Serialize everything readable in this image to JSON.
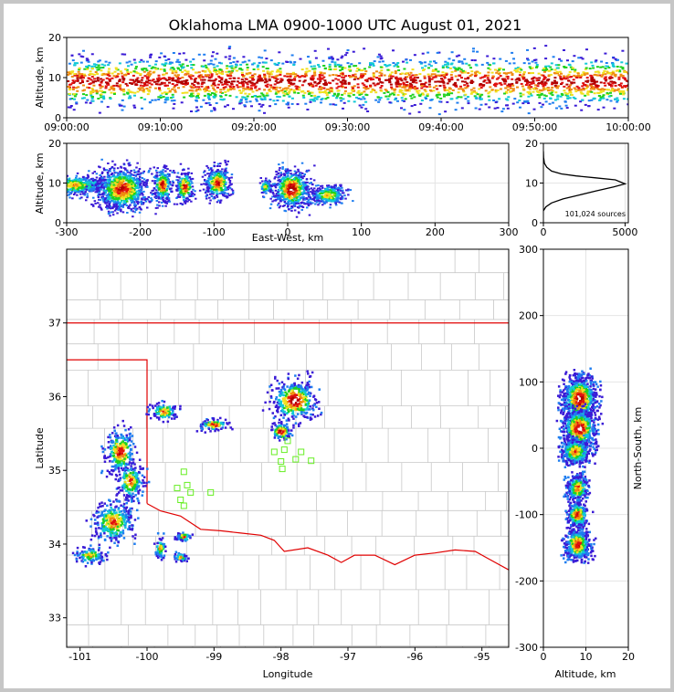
{
  "chart_data": [
    {
      "type": "heatmap",
      "panel": "altitude-time",
      "title": "Oklahoma LMA 0900-1000 UTC August 01, 2021",
      "xlabel": "",
      "ylabel": "Altitude, km",
      "xlim": [
        "09:00:00",
        "10:00:00"
      ],
      "ylim": [
        0,
        20
      ],
      "x_ticks": [
        "09:00:00",
        "09:10:00",
        "09:20:00",
        "09:30:00",
        "09:40:00",
        "09:50:00",
        "10:00:00"
      ],
      "y_ticks": [
        "0",
        "10",
        "20"
      ],
      "band_center_km": 9,
      "band_halfwidth_km": 3.5
    },
    {
      "type": "heatmap",
      "panel": "altitude-east-west",
      "xlabel": "East-West, km",
      "ylabel": "Altitude, km",
      "xlim": [
        -300,
        300
      ],
      "ylim": [
        0,
        20
      ],
      "x_ticks": [
        "-300",
        "-200",
        "-100",
        "0",
        "100",
        "200",
        "300"
      ],
      "y_ticks": [
        "0",
        "10",
        "20"
      ],
      "clusters": [
        {
          "x": -290,
          "w": 45,
          "z": 9.5,
          "h": 2.5,
          "level": 2
        },
        {
          "x": -225,
          "w": 35,
          "z": 8.5,
          "h": 5.5,
          "level": 4
        },
        {
          "x": -170,
          "w": 12,
          "z": 9.5,
          "h": 4.5,
          "level": 4
        },
        {
          "x": -140,
          "w": 12,
          "z": 9,
          "h": 4,
          "level": 4
        },
        {
          "x": -95,
          "w": 18,
          "z": 10,
          "h": 4,
          "level": 4
        },
        {
          "x": -30,
          "w": 8,
          "z": 9,
          "h": 2,
          "level": 2
        },
        {
          "x": 5,
          "w": 25,
          "z": 8.5,
          "h": 5,
          "level": 5
        },
        {
          "x": 55,
          "w": 25,
          "z": 7,
          "h": 2.5,
          "level": 2
        }
      ]
    },
    {
      "type": "line",
      "panel": "altitude-histogram",
      "annotation": "101,024 sources",
      "xlim": [
        0,
        5200
      ],
      "ylim": [
        0,
        20
      ],
      "x_ticks": [
        "0",
        "5000"
      ],
      "y_ticks": [
        "0",
        "10",
        "20"
      ],
      "x": [
        0,
        150,
        500,
        1200,
        2200,
        3200,
        4300,
        5000,
        4400,
        3200,
        2000,
        1100,
        500,
        200,
        60,
        10,
        0
      ],
      "y": [
        3,
        4,
        5,
        6,
        7,
        8,
        9,
        9.8,
        10.8,
        11.3,
        11.8,
        12.3,
        13,
        14,
        15,
        16.5,
        18
      ]
    },
    {
      "type": "heatmap",
      "panel": "plan-view-map",
      "xlabel": "Longitude",
      "ylabel": "Latitude",
      "xlim": [
        -101.2,
        -94.6
      ],
      "ylim": [
        32.6,
        38.0
      ],
      "x_ticks": [
        "-101",
        "-100",
        "-99",
        "-98",
        "-97",
        "-96",
        "-95"
      ],
      "y_ticks": [
        "33",
        "34",
        "35",
        "36",
        "37"
      ],
      "clusters": [
        {
          "lon": -100.4,
          "lat": 35.25,
          "w": 0.22,
          "h": 0.3,
          "level": 4
        },
        {
          "lon": -100.25,
          "lat": 34.85,
          "w": 0.2,
          "h": 0.25,
          "level": 3
        },
        {
          "lon": -100.5,
          "lat": 34.3,
          "w": 0.3,
          "h": 0.28,
          "level": 3
        },
        {
          "lon": -100.85,
          "lat": 33.85,
          "w": 0.22,
          "h": 0.12,
          "level": 2
        },
        {
          "lon": -99.75,
          "lat": 35.8,
          "w": 0.2,
          "h": 0.12,
          "level": 3
        },
        {
          "lon": -99.0,
          "lat": 35.62,
          "w": 0.22,
          "h": 0.08,
          "level": 4
        },
        {
          "lon": -97.8,
          "lat": 35.95,
          "w": 0.35,
          "h": 0.28,
          "level": 5
        },
        {
          "lon": -98.0,
          "lat": 35.53,
          "w": 0.15,
          "h": 0.12,
          "level": 5
        },
        {
          "lon": -99.45,
          "lat": 34.1,
          "w": 0.12,
          "h": 0.06,
          "level": 3
        },
        {
          "lon": -99.5,
          "lat": 33.82,
          "w": 0.1,
          "h": 0.06,
          "level": 2
        },
        {
          "lon": -99.8,
          "lat": 33.95,
          "w": 0.08,
          "h": 0.15,
          "level": 2
        }
      ],
      "stations": [
        [
          -99.45,
          34.98
        ],
        [
          -99.55,
          34.76
        ],
        [
          -99.4,
          34.8
        ],
        [
          -99.35,
          34.7
        ],
        [
          -99.5,
          34.6
        ],
        [
          -99.45,
          34.52
        ],
        [
          -99.05,
          34.7
        ],
        [
          -98.1,
          35.25
        ],
        [
          -97.95,
          35.28
        ],
        [
          -98.0,
          35.12
        ],
        [
          -97.98,
          35.02
        ],
        [
          -97.78,
          35.15
        ],
        [
          -97.7,
          35.25
        ],
        [
          -97.55,
          35.13
        ],
        [
          -97.9,
          35.4
        ]
      ]
    },
    {
      "type": "heatmap",
      "panel": "north-south-altitude",
      "xlabel": "Altitude, km",
      "ylabel": "North-South, km",
      "xlim": [
        0,
        20
      ],
      "ylim": [
        -300,
        300
      ],
      "x_ticks": [
        "0",
        "10",
        "20"
      ],
      "y_ticks": [
        "-300",
        "-200",
        "-100",
        "0",
        "100",
        "200",
        "300"
      ],
      "clusters": [
        {
          "z": 8.5,
          "ns": 75,
          "w": 4,
          "h": 35,
          "level": 5
        },
        {
          "z": 8.5,
          "ns": 30,
          "w": 4,
          "h": 30,
          "level": 5
        },
        {
          "z": 7.5,
          "ns": -5,
          "w": 3.5,
          "h": 20,
          "level": 3
        },
        {
          "z": 8,
          "ns": -60,
          "w": 2.5,
          "h": 20,
          "level": 3
        },
        {
          "z": 8,
          "ns": -100,
          "w": 2.5,
          "h": 20,
          "level": 4
        },
        {
          "z": 8,
          "ns": -145,
          "w": 3,
          "h": 25,
          "level": 4
        }
      ]
    }
  ]
}
